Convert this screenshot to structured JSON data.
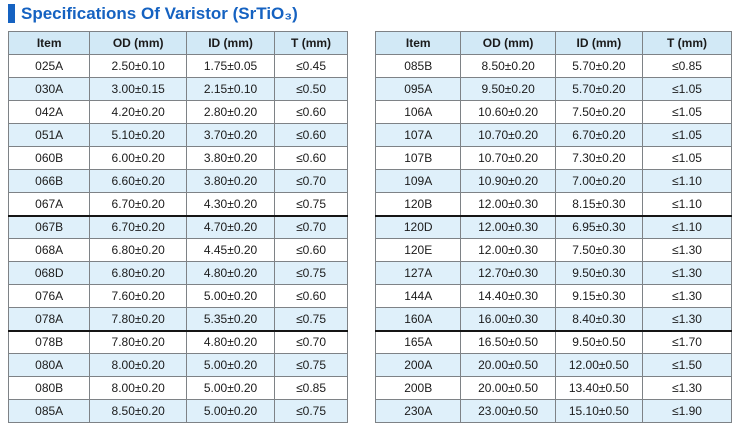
{
  "title": {
    "text": "Specifications Of Varistor (SrTiO₃)"
  },
  "colors": {
    "accent_blue": "#1562c1",
    "header_bg": "#d2e9f6",
    "alt_row_bg": "#dff0fa",
    "grid_border": "#7e8286",
    "group_break_border": "#151515",
    "text": "#1b1b1b"
  },
  "tables": [
    {
      "name": "left",
      "columns": [
        "Item",
        "OD (mm)",
        "ID (mm)",
        "T (mm)"
      ],
      "rows": [
        [
          "025A",
          "2.50±0.10",
          "1.75±0.05",
          "≤0.45"
        ],
        [
          "030A",
          "3.00±0.15",
          "2.15±0.10",
          "≤0.50"
        ],
        [
          "042A",
          "4.20±0.20",
          "2.80±0.20",
          "≤0.60"
        ],
        [
          "051A",
          "5.10±0.20",
          "3.70±0.20",
          "≤0.60"
        ],
        [
          "060B",
          "6.00±0.20",
          "3.80±0.20",
          "≤0.60"
        ],
        [
          "066B",
          "6.60±0.20",
          "3.80±0.20",
          "≤0.70"
        ],
        [
          "067A",
          "6.70±0.20",
          "4.30±0.20",
          "≤0.75"
        ],
        [
          "067B",
          "6.70±0.20",
          "4.70±0.20",
          "≤0.70"
        ],
        [
          "068A",
          "6.80±0.20",
          "4.45±0.20",
          "≤0.60"
        ],
        [
          "068D",
          "6.80±0.20",
          "4.80±0.20",
          "≤0.75"
        ],
        [
          "076A",
          "7.60±0.20",
          "5.00±0.20",
          "≤0.60"
        ],
        [
          "078A",
          "7.80±0.20",
          "5.35±0.20",
          "≤0.75"
        ],
        [
          "078B",
          "7.80±0.20",
          "4.80±0.20",
          "≤0.70"
        ],
        [
          "080A",
          "8.00±0.20",
          "5.00±0.20",
          "≤0.75"
        ],
        [
          "080B",
          "8.00±0.20",
          "5.00±0.20",
          "≤0.85"
        ],
        [
          "085A",
          "8.50±0.20",
          "5.00±0.20",
          "≤0.75"
        ]
      ],
      "group_breaks": [
        7,
        12
      ]
    },
    {
      "name": "right",
      "columns": [
        "Item",
        "OD (mm)",
        "ID (mm)",
        "T (mm)"
      ],
      "rows": [
        [
          "085B",
          "8.50±0.20",
          "5.70±0.20",
          "≤0.85"
        ],
        [
          "095A",
          "9.50±0.20",
          "5.70±0.20",
          "≤1.05"
        ],
        [
          "106A",
          "10.60±0.20",
          "7.50±0.20",
          "≤1.05"
        ],
        [
          "107A",
          "10.70±0.20",
          "6.70±0.20",
          "≤1.05"
        ],
        [
          "107B",
          "10.70±0.20",
          "7.30±0.20",
          "≤1.05"
        ],
        [
          "109A",
          "10.90±0.20",
          "7.00±0.20",
          "≤1.10"
        ],
        [
          "120B",
          "12.00±0.30",
          "8.15±0.30",
          "≤1.10"
        ],
        [
          "120D",
          "12.00±0.30",
          "6.95±0.30",
          "≤1.10"
        ],
        [
          "120E",
          "12.00±0.30",
          "7.50±0.30",
          "≤1.30"
        ],
        [
          "127A",
          "12.70±0.30",
          "9.50±0.30",
          "≤1.30"
        ],
        [
          "144A",
          "14.40±0.30",
          "9.15±0.30",
          "≤1.30"
        ],
        [
          "160A",
          "16.00±0.30",
          "8.40±0.30",
          "≤1.30"
        ],
        [
          "165A",
          "16.50±0.50",
          "9.50±0.50",
          "≤1.70"
        ],
        [
          "200A",
          "20.00±0.50",
          "12.00±0.50",
          "≤1.50"
        ],
        [
          "200B",
          "20.00±0.50",
          "13.40±0.50",
          "≤1.30"
        ],
        [
          "230A",
          "23.00±0.50",
          "15.10±0.50",
          "≤1.90"
        ]
      ],
      "group_breaks": [
        7,
        12
      ]
    }
  ]
}
